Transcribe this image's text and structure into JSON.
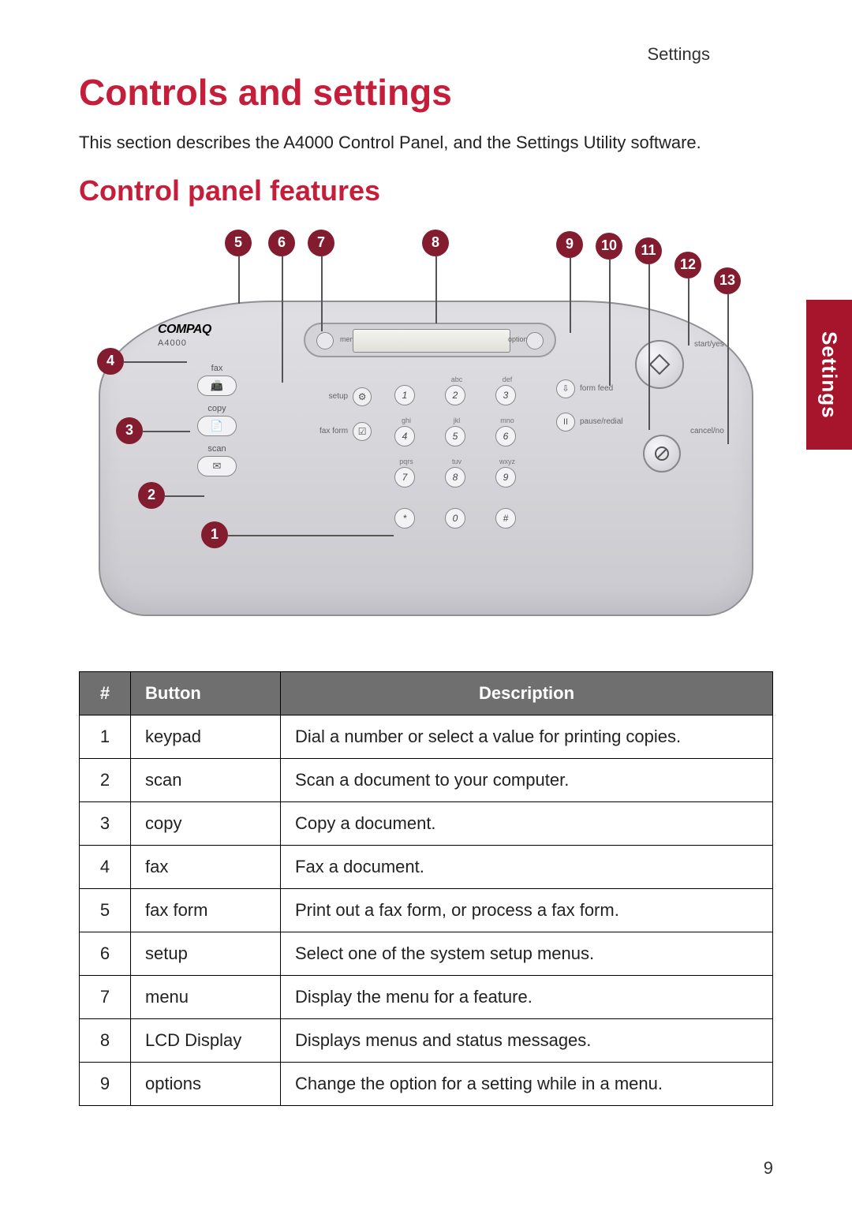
{
  "header": {
    "right": "Settings"
  },
  "title": "Controls and settings",
  "intro": "This section describes the A4000 Control Panel, and the Settings Utility software.",
  "subtitle": "Control panel features",
  "side_tab": "Settings",
  "page_number": "9",
  "diagram": {
    "brand": "COMPAQ",
    "model": "A4000",
    "lcd_left_label": "menu",
    "lcd_right_label": "options",
    "modes": [
      {
        "label": "fax",
        "glyph": "📠"
      },
      {
        "label": "copy",
        "glyph": "📄"
      },
      {
        "label": "scan",
        "glyph": "✉"
      }
    ],
    "utils": [
      {
        "label": "setup",
        "glyph": "⚙"
      },
      {
        "label": "fax form",
        "glyph": "☑"
      }
    ],
    "keypad_labels": [
      "",
      "abc",
      "def",
      "ghi",
      "jkl",
      "mno",
      "pqrs",
      "tuv",
      "wxyz",
      "",
      "",
      ""
    ],
    "keypad_keys": [
      "1",
      "2",
      "3",
      "4",
      "5",
      "6",
      "7",
      "8",
      "9",
      "*",
      "0",
      "#"
    ],
    "right_buttons": [
      {
        "label": "form feed",
        "glyph": "⇩"
      },
      {
        "label": "pause/redial",
        "glyph": "II"
      }
    ],
    "start_label": "start/yes",
    "cancel_label": "cancel/no",
    "callouts": [
      "1",
      "2",
      "3",
      "4",
      "5",
      "6",
      "7",
      "8",
      "9",
      "10",
      "11",
      "12",
      "13"
    ]
  },
  "table": {
    "headers": [
      "#",
      "Button",
      "Description"
    ],
    "rows": [
      [
        "1",
        "keypad",
        "Dial a number or select a value for printing copies."
      ],
      [
        "2",
        "scan",
        "Scan a document to your computer."
      ],
      [
        "3",
        "copy",
        "Copy a document."
      ],
      [
        "4",
        "fax",
        "Fax a document."
      ],
      [
        "5",
        "fax form",
        "Print out a fax form, or process a fax form."
      ],
      [
        "6",
        "setup",
        "Select one of the system setup menus."
      ],
      [
        "7",
        "menu",
        "Display the menu for a feature."
      ],
      [
        "8",
        "LCD Display",
        "Displays menus and status messages."
      ],
      [
        "9",
        "options",
        "Change the option for a setting while in a menu."
      ]
    ]
  },
  "colors": {
    "heading": "#c41e3a",
    "callout_bg": "#821c2e",
    "table_header_bg": "#6f6f6f",
    "side_tab_bg": "#a7152c"
  }
}
